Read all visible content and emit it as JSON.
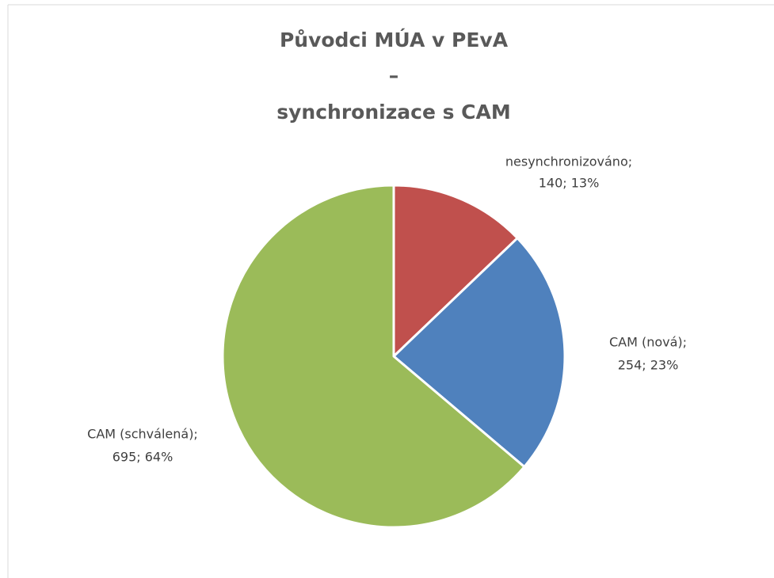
{
  "chart_data": {
    "type": "pie",
    "title": [
      "Původci MÚA v PEvA",
      "–",
      "synchronizace s CAM"
    ],
    "categories": [
      "nesynchronizováno;",
      "CAM (nová);",
      "CAM (schválená);"
    ],
    "values": [
      140,
      254,
      695
    ],
    "value_labels": [
      "140; 13%",
      "254; 23%",
      "695; 64%"
    ],
    "colors": [
      "#c0504d",
      "#4f81bd",
      "#9bbb59"
    ]
  }
}
